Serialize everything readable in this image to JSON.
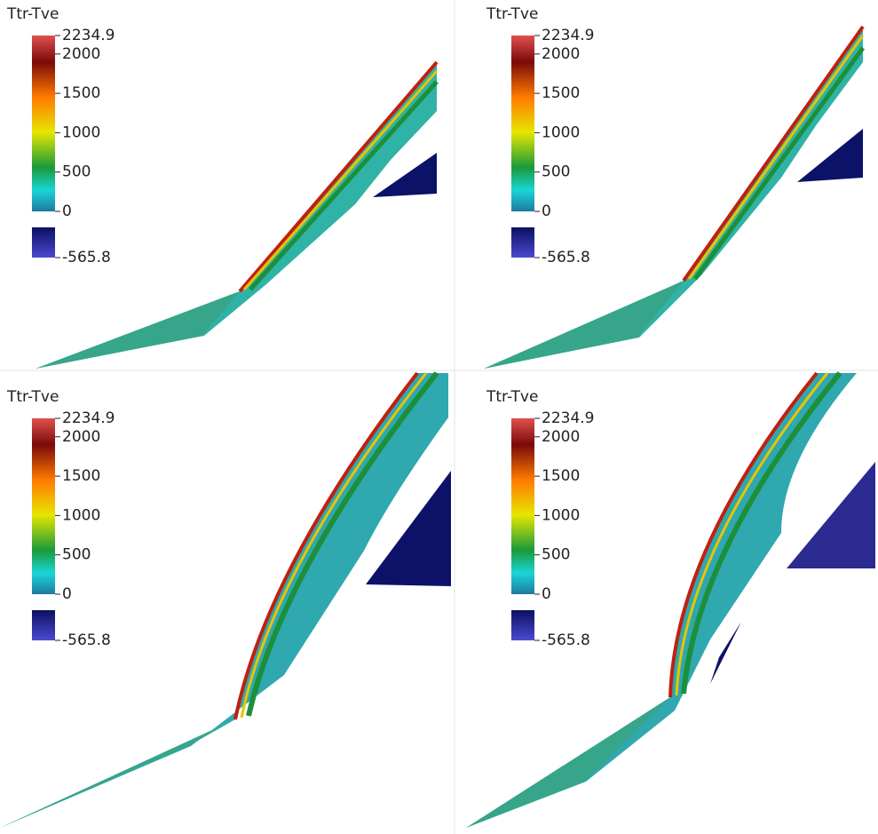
{
  "panels": [
    {
      "colorbar": {
        "title": "Ttr-Tve",
        "ticks": [
          2234.9,
          2000,
          1500,
          1000,
          500,
          0,
          -565.8
        ]
      }
    },
    {
      "colorbar": {
        "title": "Ttr-Tve",
        "ticks": [
          2234.9,
          2000,
          1500,
          1000,
          500,
          0,
          -565.8
        ]
      }
    },
    {
      "colorbar": {
        "title": "Ttr-Tve",
        "ticks": [
          2234.9,
          2000,
          1500,
          1000,
          500,
          0,
          -565.8
        ]
      }
    },
    {
      "colorbar": {
        "title": "Ttr-Tve",
        "ticks": [
          2234.9,
          2000,
          1500,
          1000,
          500,
          0,
          -565.8
        ]
      }
    }
  ]
}
